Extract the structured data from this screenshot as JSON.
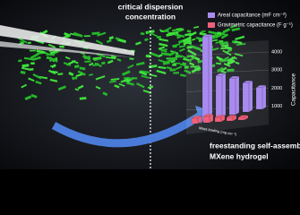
{
  "figure": {
    "top_label": [
      "critical dispersion",
      "concentration"
    ],
    "bottom_label": [
      "freestanding self-assembled",
      "MXene hydrogel"
    ],
    "chart": {
      "type": "bar3d",
      "y_label": "Capacitance",
      "x_label": "Mass loading (mg cm⁻²)",
      "ylim": [
        0,
        4000
      ],
      "yticks": [
        1000,
        2000,
        3000,
        4000
      ],
      "series": [
        {
          "name": "Areal capacitance (mF cm⁻²)",
          "color": "#a98bf0",
          "values": [
            4600,
            2300,
            2000,
            1600,
            1200
          ]
        },
        {
          "name": "Gravimetric capacitance (F g⁻¹)",
          "color": "#f0607a",
          "values": [
            300,
            350,
            250,
            200,
            150
          ]
        }
      ]
    }
  }
}
